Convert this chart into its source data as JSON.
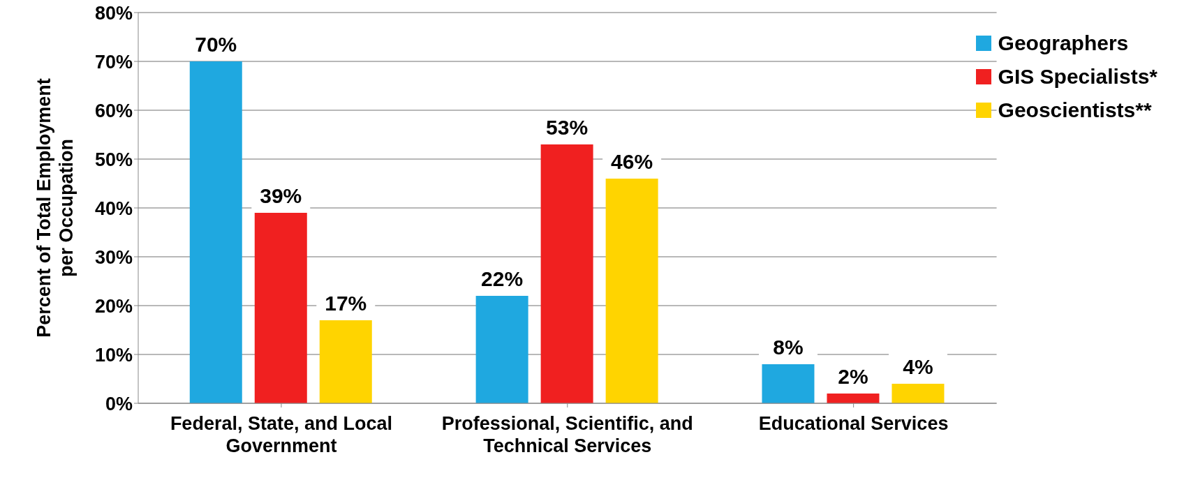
{
  "chart_data": {
    "type": "bar",
    "ylabel": "Percent of Total Employment per Occupation",
    "categories": [
      "Federal, State, and Local Government",
      "Professional, Scientific, and Technical Services",
      "Educational Services"
    ],
    "series": [
      {
        "name": "Geographers",
        "color": "#1fa8e0",
        "values": [
          70,
          22,
          8
        ],
        "value_labels": [
          "70%",
          "22%",
          "8%"
        ]
      },
      {
        "name": "GIS Specialists*",
        "color": "#f02020",
        "values": [
          39,
          53,
          2
        ],
        "value_labels": [
          "39%",
          "53%",
          "2%"
        ]
      },
      {
        "name": "Geoscientists**",
        "color": "#ffd400",
        "values": [
          17,
          46,
          4
        ],
        "value_labels": [
          "17%",
          "46%",
          "4%"
        ]
      }
    ],
    "ylim": [
      0,
      80
    ],
    "yticks": [
      {
        "value": 0,
        "label": "0%"
      },
      {
        "value": 10,
        "label": "10%"
      },
      {
        "value": 20,
        "label": "20%"
      },
      {
        "value": 30,
        "label": "30%"
      },
      {
        "value": 40,
        "label": "40%"
      },
      {
        "value": 50,
        "label": "50%"
      },
      {
        "value": 60,
        "label": "60%"
      },
      {
        "value": 70,
        "label": "70%"
      },
      {
        "value": 80,
        "label": "80%"
      }
    ],
    "grid": "y",
    "legend": "top right"
  }
}
